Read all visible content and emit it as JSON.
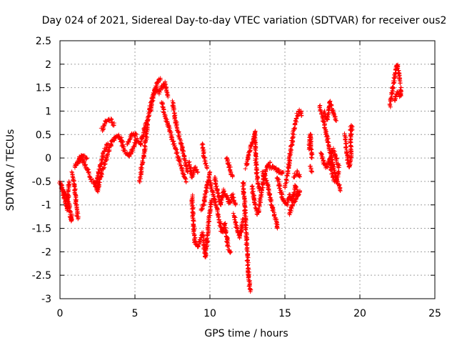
{
  "chart_data": {
    "type": "scatter",
    "title": "Day 024 of 2021, Sidereal Day-to-day VTEC variation (SDTVAR) for receiver ous2",
    "xlabel": "GPS time / hours",
    "ylabel": "SDTVAR / TECUs",
    "xlim": [
      0,
      25
    ],
    "ylim": [
      -3,
      2.5
    ],
    "xticks": [
      "0",
      "5",
      "10",
      "15",
      "20",
      "25"
    ],
    "yticks": [
      "-3",
      "-2.5",
      "-2",
      "-1.5",
      "-1",
      "-0.5",
      "0",
      "0.5",
      "1",
      "1.5",
      "2",
      "2.5"
    ],
    "grid": true,
    "marker": "plus",
    "color": "#ff0000",
    "segments": [
      [
        [
          0.0,
          -0.5
        ],
        [
          0.2,
          -0.7
        ],
        [
          0.4,
          -0.8
        ],
        [
          0.6,
          -1.0
        ],
        [
          0.75,
          -1.35
        ],
        [
          0.8,
          -1.2
        ]
      ],
      [
        [
          0.1,
          -0.6
        ],
        [
          0.3,
          -0.9
        ],
        [
          0.5,
          -1.1
        ],
        [
          0.6,
          -0.5
        ]
      ],
      [
        [
          0.8,
          -0.3
        ],
        [
          1.0,
          -0.7
        ],
        [
          1.1,
          -1.1
        ],
        [
          1.2,
          -1.3
        ]
      ],
      [
        [
          1.0,
          -0.2
        ],
        [
          1.3,
          0.0
        ],
        [
          1.6,
          -0.1
        ],
        [
          1.9,
          -0.3
        ],
        [
          2.1,
          -0.5
        ]
      ],
      [
        [
          1.2,
          -0.1
        ],
        [
          1.5,
          0.05
        ],
        [
          1.8,
          0.0
        ]
      ],
      [
        [
          2.2,
          -0.5
        ],
        [
          2.5,
          -0.7
        ],
        [
          2.7,
          -0.4
        ],
        [
          2.9,
          -0.2
        ],
        [
          3.1,
          0.0
        ],
        [
          3.4,
          0.3
        ],
        [
          3.8,
          0.5
        ],
        [
          4.2,
          0.35
        ]
      ],
      [
        [
          2.4,
          -0.6
        ],
        [
          2.6,
          -0.3
        ],
        [
          2.9,
          0.1
        ],
        [
          3.2,
          0.3
        ]
      ],
      [
        [
          2.8,
          0.6
        ],
        [
          3.1,
          0.8
        ],
        [
          3.4,
          0.8
        ],
        [
          3.6,
          0.7
        ]
      ],
      [
        [
          4.0,
          0.4
        ],
        [
          4.3,
          0.15
        ],
        [
          4.6,
          0.05
        ],
        [
          4.9,
          0.2
        ],
        [
          5.1,
          0.4
        ],
        [
          5.4,
          0.3
        ],
        [
          5.6,
          0.6
        ],
        [
          5.8,
          0.8
        ]
      ],
      [
        [
          4.5,
          0.3
        ],
        [
          4.8,
          0.5
        ],
        [
          5.1,
          0.5
        ]
      ],
      [
        [
          5.3,
          -0.5
        ],
        [
          5.5,
          -0.1
        ],
        [
          5.7,
          0.3
        ],
        [
          5.9,
          0.9
        ],
        [
          6.1,
          1.2
        ],
        [
          6.3,
          1.4
        ],
        [
          6.5,
          1.6
        ],
        [
          6.7,
          1.7
        ]
      ],
      [
        [
          6.0,
          1.0
        ],
        [
          6.2,
          1.3
        ],
        [
          6.4,
          1.5
        ],
        [
          6.6,
          1.4
        ],
        [
          6.8,
          1.5
        ],
        [
          7.0,
          1.6
        ],
        [
          7.2,
          1.3
        ]
      ],
      [
        [
          6.8,
          1.2
        ],
        [
          7.0,
          0.9
        ],
        [
          7.3,
          0.6
        ],
        [
          7.6,
          0.3
        ],
        [
          7.9,
          0.0
        ],
        [
          8.2,
          -0.3
        ],
        [
          8.4,
          -0.5
        ]
      ],
      [
        [
          7.5,
          1.2
        ],
        [
          7.7,
          0.8
        ],
        [
          8.0,
          0.4
        ],
        [
          8.3,
          0.0
        ],
        [
          8.5,
          -0.3
        ]
      ],
      [
        [
          8.6,
          -0.1
        ],
        [
          8.8,
          -0.4
        ],
        [
          9.0,
          -0.2
        ],
        [
          9.2,
          -0.3
        ]
      ],
      [
        [
          8.8,
          -0.8
        ],
        [
          8.9,
          -1.4
        ],
        [
          9.0,
          -1.8
        ],
        [
          9.2,
          -1.9
        ],
        [
          9.5,
          -1.6
        ],
        [
          9.7,
          -2.1
        ],
        [
          9.9,
          -1.4
        ],
        [
          10.1,
          -0.9
        ]
      ],
      [
        [
          9.4,
          -1.1
        ],
        [
          9.6,
          -1.0
        ],
        [
          9.8,
          -0.6
        ],
        [
          10.0,
          -0.3
        ]
      ],
      [
        [
          9.5,
          0.3
        ],
        [
          9.6,
          0.0
        ],
        [
          9.8,
          -0.2
        ]
      ],
      [
        [
          10.0,
          -0.5
        ],
        [
          10.2,
          -0.8
        ],
        [
          10.4,
          -1.0
        ],
        [
          10.6,
          -1.3
        ],
        [
          10.8,
          -1.6
        ],
        [
          11.0,
          -1.4
        ],
        [
          11.2,
          -1.9
        ],
        [
          11.4,
          -2.0
        ]
      ],
      [
        [
          10.3,
          -0.4
        ],
        [
          10.5,
          -0.7
        ],
        [
          10.7,
          -1.0
        ],
        [
          10.9,
          -0.7
        ],
        [
          11.1,
          -0.8
        ],
        [
          11.3,
          -1.0
        ],
        [
          11.5,
          -0.8
        ],
        [
          11.7,
          -1.0
        ]
      ],
      [
        [
          11.1,
          0.0
        ],
        [
          11.3,
          -0.2
        ],
        [
          11.5,
          -0.4
        ]
      ],
      [
        [
          11.6,
          -1.2
        ],
        [
          11.8,
          -1.5
        ],
        [
          12.0,
          -1.7
        ],
        [
          12.2,
          -1.3
        ]
      ],
      [
        [
          12.2,
          -0.5
        ],
        [
          12.3,
          -0.9
        ],
        [
          12.4,
          -1.5
        ],
        [
          12.5,
          -2.1
        ],
        [
          12.6,
          -2.6
        ],
        [
          12.7,
          -2.85
        ]
      ],
      [
        [
          12.4,
          -0.2
        ],
        [
          12.6,
          0.1
        ],
        [
          12.8,
          0.3
        ],
        [
          13.0,
          0.55
        ],
        [
          13.1,
          -0.3
        ],
        [
          13.3,
          -0.7
        ]
      ],
      [
        [
          12.8,
          -0.6
        ],
        [
          13.0,
          -1.0
        ],
        [
          13.2,
          -1.2
        ],
        [
          13.4,
          -0.8
        ],
        [
          13.6,
          -0.4
        ],
        [
          13.8,
          -0.2
        ],
        [
          14.0,
          -0.1
        ]
      ],
      [
        [
          13.5,
          -0.3
        ],
        [
          13.8,
          -0.5
        ],
        [
          14.0,
          -0.8
        ],
        [
          14.2,
          -1.1
        ],
        [
          14.4,
          -1.3
        ],
        [
          14.5,
          -1.5
        ]
      ],
      [
        [
          14.0,
          -0.2
        ],
        [
          14.3,
          -0.2
        ],
        [
          14.6,
          -0.3
        ],
        [
          14.9,
          -0.3
        ]
      ],
      [
        [
          14.5,
          -0.4
        ],
        [
          14.7,
          -0.7
        ],
        [
          14.9,
          -0.9
        ],
        [
          15.1,
          -1.0
        ],
        [
          15.3,
          -0.8
        ],
        [
          15.5,
          -0.9
        ],
        [
          15.7,
          -0.6
        ],
        [
          15.9,
          -0.8
        ]
      ],
      [
        [
          15.0,
          -0.6
        ],
        [
          15.2,
          -0.3
        ],
        [
          15.4,
          0.2
        ],
        [
          15.6,
          0.6
        ],
        [
          15.8,
          0.9
        ],
        [
          16.0,
          1.0
        ],
        [
          16.1,
          0.9
        ]
      ],
      [
        [
          15.3,
          -1.2
        ],
        [
          15.5,
          -1.0
        ],
        [
          15.7,
          -0.9
        ],
        [
          16.0,
          -0.7
        ]
      ],
      [
        [
          15.6,
          -0.4
        ],
        [
          15.8,
          -0.3
        ],
        [
          16.0,
          -0.4
        ]
      ],
      [
        [
          16.6,
          0.2
        ],
        [
          16.7,
          0.5
        ],
        [
          16.8,
          0.0
        ]
      ],
      [
        [
          16.7,
          -0.2
        ],
        [
          16.8,
          -0.3
        ]
      ],
      [
        [
          17.3,
          1.1
        ],
        [
          17.5,
          0.9
        ],
        [
          17.7,
          0.6
        ],
        [
          17.9,
          0.3
        ],
        [
          18.1,
          0.0
        ],
        [
          18.3,
          -0.3
        ],
        [
          18.5,
          -0.5
        ],
        [
          18.7,
          -0.7
        ]
      ],
      [
        [
          17.4,
          0.1
        ],
        [
          17.6,
          -0.1
        ],
        [
          17.8,
          -0.2
        ],
        [
          18.0,
          0.0
        ],
        [
          18.2,
          0.2
        ],
        [
          18.4,
          0.0
        ],
        [
          18.6,
          -0.2
        ]
      ],
      [
        [
          17.6,
          1.0
        ],
        [
          17.8,
          0.8
        ],
        [
          18.0,
          1.2
        ],
        [
          18.2,
          1.0
        ],
        [
          18.4,
          0.8
        ]
      ],
      [
        [
          18.0,
          -0.1
        ],
        [
          18.2,
          -0.4
        ],
        [
          18.4,
          -0.5
        ],
        [
          18.6,
          -0.3
        ]
      ],
      [
        [
          19.0,
          0.5
        ],
        [
          19.1,
          0.2
        ],
        [
          19.2,
          -0.1
        ],
        [
          19.3,
          -0.2
        ],
        [
          19.4,
          0.0
        ],
        [
          19.4,
          0.7
        ],
        [
          19.5,
          0.6
        ]
      ],
      [
        [
          22.0,
          1.1
        ],
        [
          22.1,
          1.3
        ],
        [
          22.2,
          1.5
        ],
        [
          22.3,
          1.7
        ],
        [
          22.4,
          1.9
        ],
        [
          22.5,
          2.0
        ],
        [
          22.6,
          1.8
        ],
        [
          22.7,
          1.6
        ]
      ],
      [
        [
          22.3,
          1.2
        ],
        [
          22.5,
          1.4
        ],
        [
          22.7,
          1.3
        ],
        [
          22.75,
          1.5
        ]
      ]
    ]
  }
}
